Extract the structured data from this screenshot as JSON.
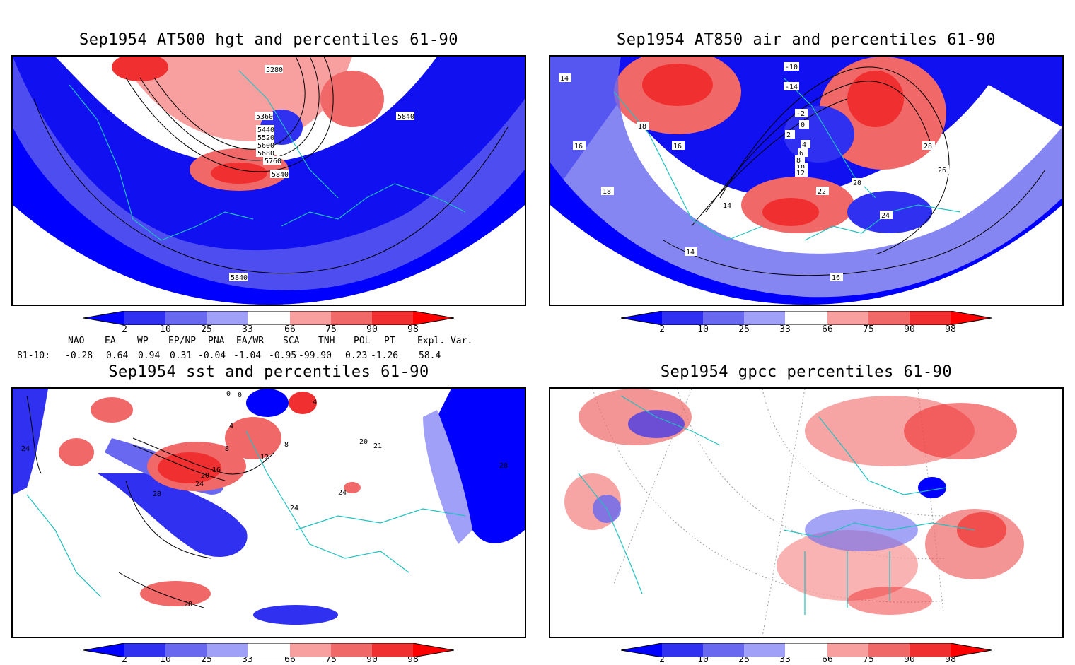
{
  "panels": [
    {
      "id": "hgt",
      "title": "Sep1954 AT500 hgt and percentiles 61-90",
      "contour_labels": [
        "5280",
        "5360",
        "5440",
        "5520",
        "5600",
        "5680",
        "5760",
        "5840",
        "5840",
        "5840"
      ]
    },
    {
      "id": "air",
      "title": "Sep1954 AT850 air and percentiles 61-90",
      "contour_labels": [
        "-10",
        "-14",
        "-2",
        "0",
        "2",
        "4",
        "6",
        "8",
        "10",
        "12",
        "14",
        "14",
        "16",
        "16",
        "18",
        "18",
        "20",
        "22",
        "24",
        "26",
        "28",
        "14",
        "16"
      ]
    },
    {
      "id": "sst",
      "title": "Sep1954 sst and percentiles 61-90",
      "contour_labels": [
        "0",
        "0",
        "4",
        "4",
        "8",
        "8",
        "12",
        "16",
        "20",
        "24",
        "24",
        "24",
        "28",
        "28",
        "28",
        "20",
        "21",
        "24"
      ]
    },
    {
      "id": "gpcc",
      "title": "Sep1954 gpcc percentiles 61-90",
      "contour_labels": []
    }
  ],
  "colorbar": {
    "labels": [
      "2",
      "10",
      "25",
      "33",
      "66",
      "75",
      "90",
      "98"
    ],
    "colors": [
      "#0000ff",
      "#3030f0",
      "#6868f0",
      "#a0a0f8",
      "#ffffff",
      "#f8a0a0",
      "#f06868",
      "#f03030",
      "#ff0000"
    ]
  },
  "indices": {
    "headers": [
      "NAO",
      "EA",
      "WP",
      "EP/NP",
      "PNA",
      "EA/WR",
      "SCA",
      "TNH",
      "POL",
      "PT",
      "Expl. Var."
    ],
    "row_label": "81-10:",
    "values": [
      "-0.28",
      "0.64",
      "0.94",
      "0.31",
      "-0.04",
      "-1.04",
      "-0.95",
      "-99.90",
      "0.23",
      "-1.26",
      "58.4"
    ]
  },
  "colors": {
    "coast": "#20c0c0",
    "grid": "#808080",
    "contour": "#000000"
  }
}
